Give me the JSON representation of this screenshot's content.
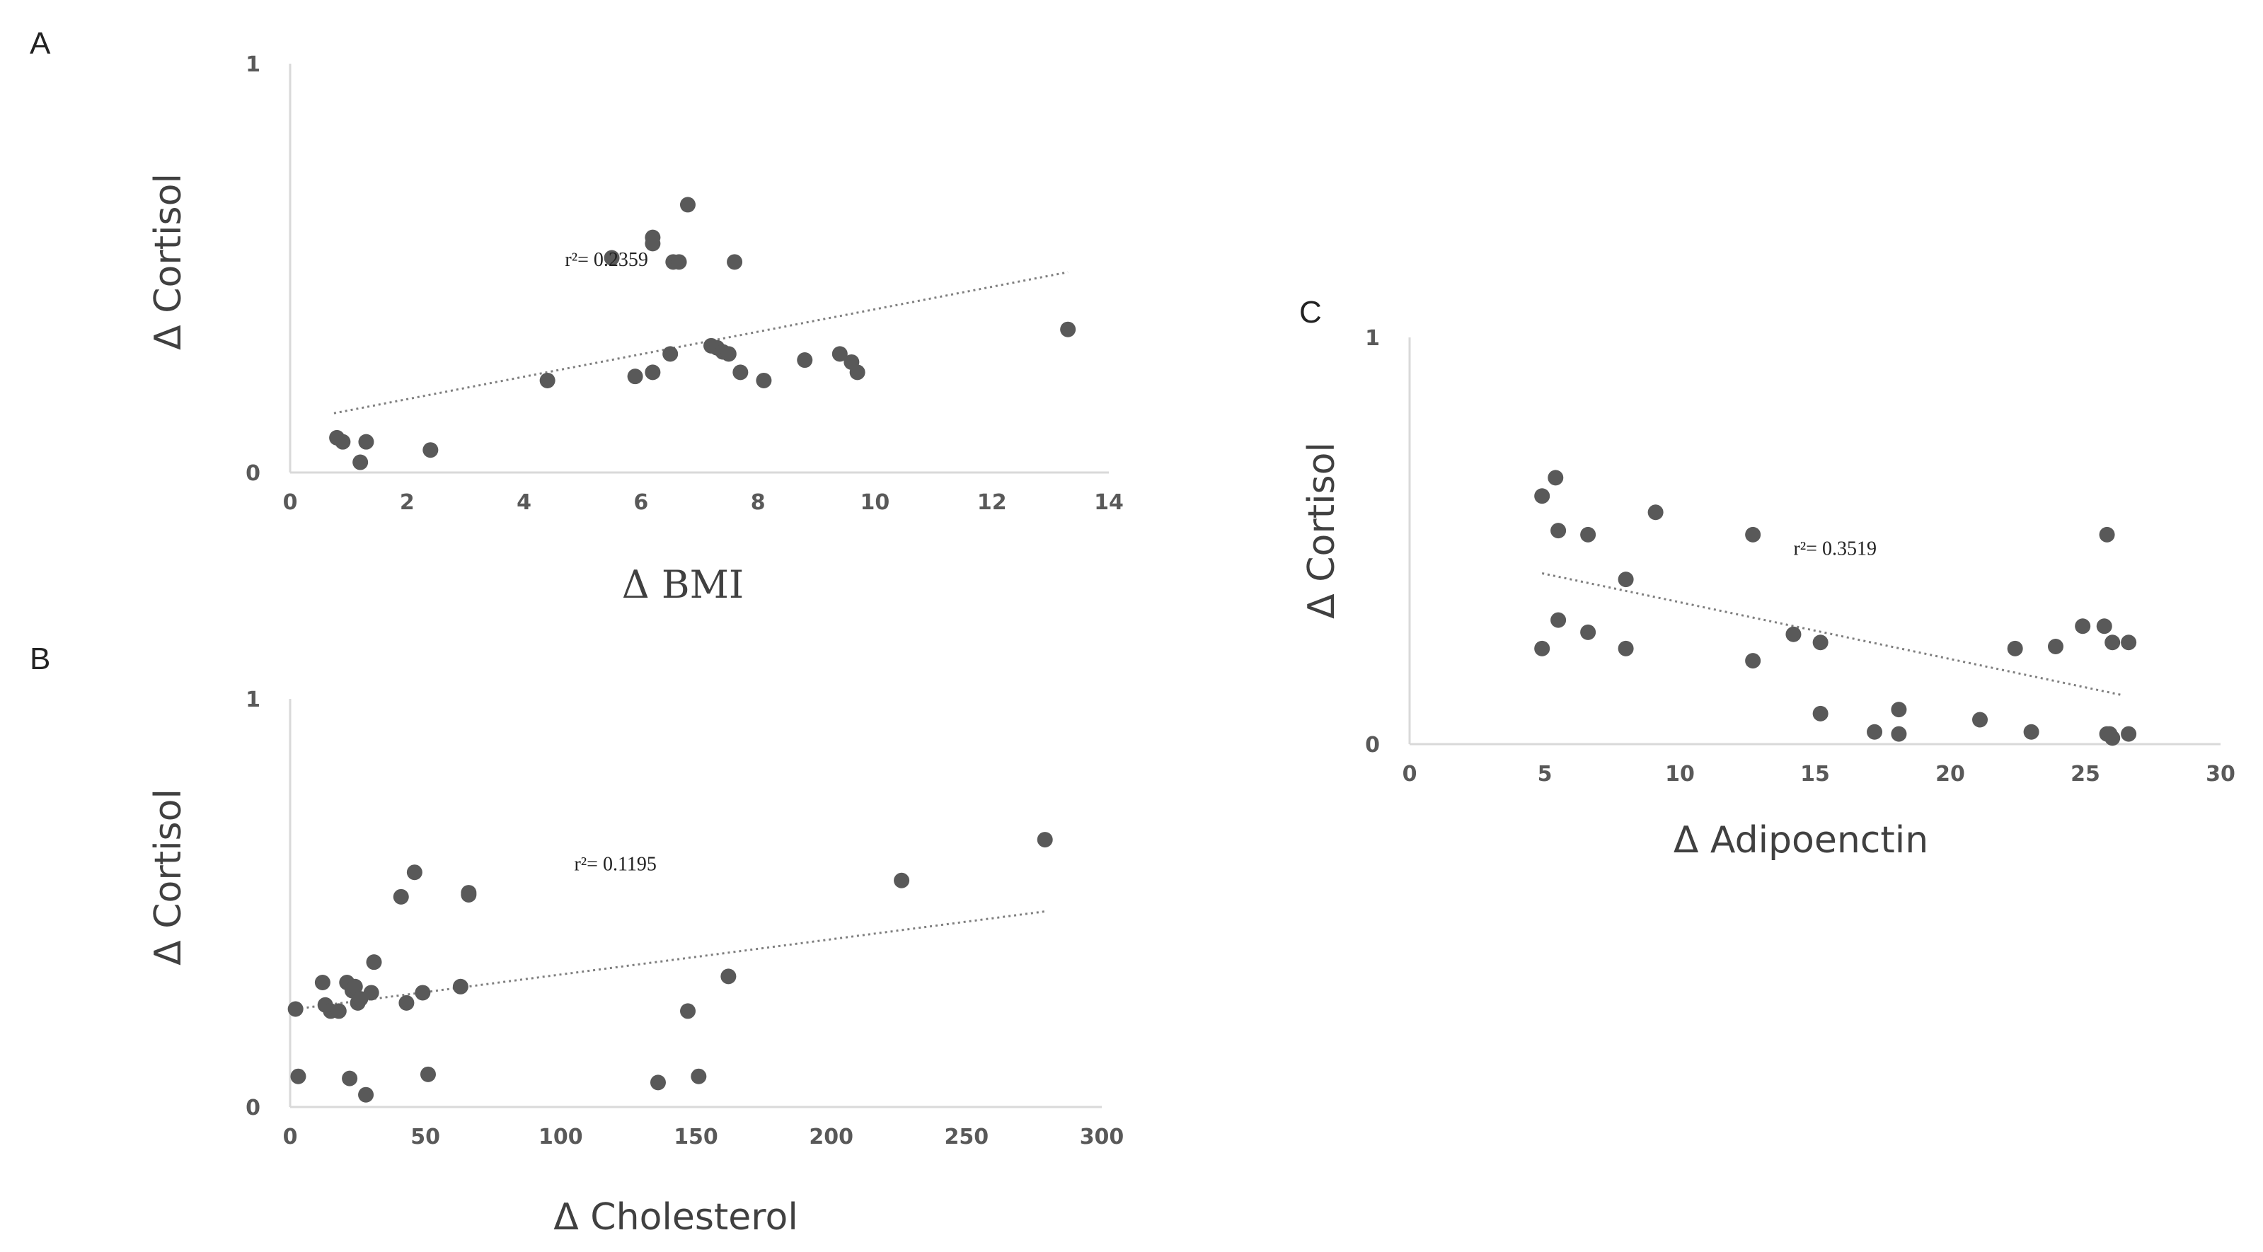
{
  "figure": {
    "colors": {
      "points": "#595959",
      "axes": "#d9d9d9",
      "trendline": "#7f7f7f",
      "text": "#404040"
    }
  },
  "chart_data": [
    {
      "type": "scatter",
      "panel": "A",
      "xlabel": "Δ  BMI",
      "ylabel": "Δ Cortisol",
      "xlim": [
        0,
        14
      ],
      "ylim": [
        0,
        1
      ],
      "xticks": [
        "0",
        "2",
        "4",
        "6",
        "8",
        "10",
        "12",
        "14"
      ],
      "yticks": [
        "0",
        "1"
      ],
      "trendline": {
        "style": "dotted",
        "x": [
          0.75,
          13.3
        ],
        "y": [
          0.145,
          0.49
        ]
      },
      "annotation": {
        "text": "r²= 0.2359",
        "at": [
          4.7,
          0.505
        ]
      },
      "points": [
        [
          0.8,
          0.085
        ],
        [
          0.9,
          0.075
        ],
        [
          1.2,
          0.025
        ],
        [
          1.3,
          0.075
        ],
        [
          2.4,
          0.055
        ],
        [
          4.4,
          0.225
        ],
        [
          5.5,
          0.525
        ],
        [
          5.9,
          0.235
        ],
        [
          6.2,
          0.245
        ],
        [
          6.2,
          0.56
        ],
        [
          6.2,
          0.575
        ],
        [
          6.5,
          0.29
        ],
        [
          6.55,
          0.515
        ],
        [
          6.65,
          0.515
        ],
        [
          6.8,
          0.655
        ],
        [
          7.2,
          0.31
        ],
        [
          7.3,
          0.305
        ],
        [
          7.4,
          0.295
        ],
        [
          7.5,
          0.29
        ],
        [
          7.6,
          0.515
        ],
        [
          7.7,
          0.245
        ],
        [
          8.1,
          0.225
        ],
        [
          8.8,
          0.275
        ],
        [
          9.4,
          0.29
        ],
        [
          9.6,
          0.27
        ],
        [
          9.7,
          0.245
        ],
        [
          13.3,
          0.35
        ]
      ]
    },
    {
      "type": "scatter",
      "panel": "B",
      "xlabel": "Δ  Cholesterol",
      "ylabel": "Δ Cortisol",
      "xlim": [
        0,
        300
      ],
      "ylim": [
        0,
        1
      ],
      "xticks": [
        "0",
        "50",
        "100",
        "150",
        "200",
        "250",
        "300"
      ],
      "yticks": [
        "0",
        "1"
      ],
      "trendline": {
        "style": "dotted",
        "x": [
          2,
          280
        ],
        "y": [
          0.24,
          0.48
        ]
      },
      "annotation": {
        "text": "r²= 0.1195",
        "at": [
          105,
          0.58
        ]
      },
      "points": [
        [
          2,
          0.24
        ],
        [
          3,
          0.075
        ],
        [
          12,
          0.305
        ],
        [
          13,
          0.25
        ],
        [
          15,
          0.235
        ],
        [
          18,
          0.235
        ],
        [
          21,
          0.305
        ],
        [
          22,
          0.07
        ],
        [
          23,
          0.285
        ],
        [
          24,
          0.295
        ],
        [
          25,
          0.255
        ],
        [
          26,
          0.265
        ],
        [
          28,
          0.03
        ],
        [
          30,
          0.28
        ],
        [
          31,
          0.355
        ],
        [
          41,
          0.515
        ],
        [
          43,
          0.255
        ],
        [
          46,
          0.575
        ],
        [
          49,
          0.28
        ],
        [
          51,
          0.08
        ],
        [
          63,
          0.295
        ],
        [
          66,
          0.52
        ],
        [
          66,
          0.525
        ],
        [
          136,
          0.06
        ],
        [
          147,
          0.235
        ],
        [
          151,
          0.075
        ],
        [
          162,
          0.32
        ],
        [
          226,
          0.555
        ],
        [
          279,
          0.655
        ]
      ]
    },
    {
      "type": "scatter",
      "panel": "C",
      "xlabel": "Δ Adipoenctin",
      "ylabel": "Δ Cortisol",
      "xlim": [
        0,
        30
      ],
      "ylim": [
        0,
        1
      ],
      "xticks": [
        "0",
        "5",
        "10",
        "15",
        "20",
        "25",
        "30"
      ],
      "yticks": [
        "0",
        "1"
      ],
      "trendline": {
        "style": "dotted",
        "x": [
          4.9,
          26.4
        ],
        "y": [
          0.42,
          0.12
        ]
      },
      "annotation": {
        "text": "r²= 0.3519",
        "at": [
          14.2,
          0.465
        ]
      },
      "points": [
        [
          4.9,
          0.61
        ],
        [
          4.9,
          0.235
        ],
        [
          5.4,
          0.655
        ],
        [
          5.5,
          0.525
        ],
        [
          5.5,
          0.305
        ],
        [
          6.6,
          0.515
        ],
        [
          6.6,
          0.275
        ],
        [
          8.0,
          0.405
        ],
        [
          8.0,
          0.235
        ],
        [
          9.1,
          0.57
        ],
        [
          12.7,
          0.515
        ],
        [
          12.7,
          0.205
        ],
        [
          14.2,
          0.27
        ],
        [
          15.2,
          0.075
        ],
        [
          15.2,
          0.25
        ],
        [
          17.2,
          0.03
        ],
        [
          18.1,
          0.085
        ],
        [
          18.1,
          0.025
        ],
        [
          21.1,
          0.06
        ],
        [
          22.4,
          0.235
        ],
        [
          23.0,
          0.03
        ],
        [
          23.9,
          0.24
        ],
        [
          24.9,
          0.29
        ],
        [
          25.7,
          0.29
        ],
        [
          25.8,
          0.025
        ],
        [
          25.8,
          0.515
        ],
        [
          25.9,
          0.025
        ],
        [
          26.0,
          0.015
        ],
        [
          26.0,
          0.25
        ],
        [
          26.6,
          0.25
        ],
        [
          26.6,
          0.025
        ]
      ]
    }
  ]
}
